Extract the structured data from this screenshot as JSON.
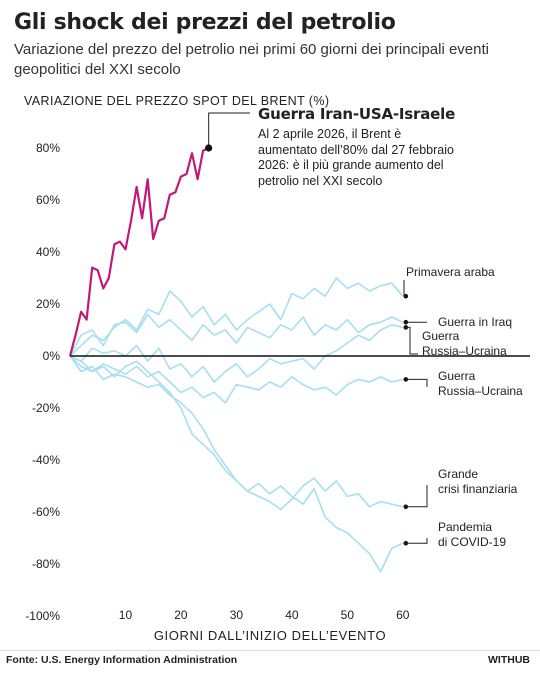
{
  "title": "Gli shock dei prezzi del petrolio",
  "subtitle": "Variazione del prezzo del petrolio nei primi 60 giorni dei principali eventi geopolitici del XXI secolo",
  "source": "Fonte: U.S. Energy Information Administration",
  "brand": "WITHUB",
  "annotation": {
    "title": "Guerra Iran-USA-Israele",
    "text": "Al 2 aprile 2026, il Brent è aumentato dell’80% dal 27 febbraio 2026: è il più grande aumento del petrolio nel XXI secolo"
  },
  "colors": {
    "highlight": "#c2187a",
    "others": "#a6dff0",
    "zero": "#111111",
    "dot": "#111111"
  },
  "chart_data": {
    "type": "line",
    "ylabel": "VARIAZIONE DEL PREZZO SPOT DEL BRENT (%)",
    "xlabel": "GIORNI DALL’INIZIO DELL’EVENTO",
    "xlim": [
      0,
      64
    ],
    "ylim": [
      -100,
      90
    ],
    "xticks": [
      10,
      20,
      30,
      40,
      50,
      60
    ],
    "xtick_labels": [
      "10",
      "20",
      "30",
      "40",
      "50",
      "60"
    ],
    "yticks": [
      80,
      60,
      40,
      20,
      0,
      -20,
      -40,
      -60,
      -80,
      -100
    ],
    "ytick_labels": [
      "80%",
      "60%",
      "40%",
      "20%",
      "0%",
      "-20%",
      "-40%",
      "-60%",
      "-80%",
      "-100%"
    ],
    "grid": false,
    "series": [
      {
        "name": "Guerra Iran-USA-Israele",
        "highlight": true,
        "x": [
          0,
          1,
          2,
          3,
          4,
          5,
          6,
          7,
          8,
          9,
          10,
          11,
          12,
          13,
          14,
          15,
          16,
          17,
          18,
          19,
          20,
          21,
          22,
          23,
          24,
          25
        ],
        "y": [
          0,
          8,
          17,
          14,
          34,
          33,
          26,
          30,
          43,
          44,
          41,
          52,
          65,
          53,
          68,
          45,
          52,
          53,
          62,
          63,
          69,
          70,
          78,
          68,
          79,
          80
        ]
      },
      {
        "name": "Primavera araba",
        "x": [
          0,
          2,
          4,
          6,
          8,
          10,
          12,
          14,
          16,
          18,
          20,
          22,
          24,
          26,
          28,
          30,
          32,
          34,
          36,
          38,
          40,
          42,
          44,
          46,
          48,
          50,
          52,
          54,
          56,
          58,
          60
        ],
        "y": [
          0,
          4,
          8,
          6,
          11,
          14,
          10,
          18,
          16,
          25,
          21,
          15,
          19,
          12,
          16,
          10,
          14,
          17,
          20,
          14,
          24,
          22,
          26,
          23,
          30,
          26,
          28,
          25,
          27,
          28,
          23
        ]
      },
      {
        "name": "Guerra in Iraq",
        "x": [
          0,
          2,
          4,
          6,
          8,
          10,
          12,
          14,
          16,
          18,
          20,
          22,
          24,
          26,
          28,
          30,
          32,
          34,
          36,
          38,
          40,
          42,
          44,
          46,
          48,
          50,
          52,
          54,
          56,
          58,
          60
        ],
        "y": [
          0,
          8,
          10,
          4,
          12,
          13,
          9,
          16,
          11,
          14,
          10,
          6,
          12,
          8,
          10,
          5,
          11,
          9,
          7,
          12,
          10,
          15,
          8,
          12,
          10,
          14,
          9,
          12,
          13,
          15,
          13
        ]
      },
      {
        "name": "Guerra Russia–Ucraina",
        "x": [
          0,
          2,
          4,
          6,
          8,
          10,
          12,
          14,
          16,
          18,
          20,
          22,
          24,
          26,
          28,
          30,
          32,
          34,
          36,
          38,
          40,
          42,
          44,
          46,
          48,
          50,
          52,
          54,
          56,
          58,
          60
        ],
        "y": [
          0,
          -2,
          3,
          1,
          2,
          0,
          4,
          -2,
          3,
          -5,
          -3,
          -8,
          -4,
          -10,
          -6,
          -3,
          -8,
          -5,
          -1,
          -3,
          -2,
          -1,
          -5,
          0,
          2,
          5,
          8,
          6,
          10,
          12,
          11
        ]
      },
      {
        "name": "Guerra Russia–Ucraina",
        "x": [
          0,
          2,
          4,
          6,
          8,
          10,
          12,
          14,
          16,
          18,
          20,
          22,
          24,
          26,
          28,
          30,
          32,
          34,
          36,
          38,
          40,
          42,
          44,
          46,
          48,
          50,
          52,
          54,
          56,
          58,
          60
        ],
        "y": [
          0,
          -4,
          -6,
          -3,
          -5,
          -7,
          -4,
          -8,
          -6,
          -10,
          -14,
          -12,
          -16,
          -14,
          -18,
          -11,
          -12,
          -13,
          -10,
          -12,
          -8,
          -11,
          -13,
          -12,
          -15,
          -11,
          -9,
          -10,
          -8,
          -10,
          -9
        ]
      },
      {
        "name": "Grande crisi finanziaria",
        "x": [
          0,
          2,
          4,
          6,
          8,
          10,
          12,
          14,
          16,
          18,
          20,
          22,
          24,
          26,
          28,
          30,
          32,
          34,
          36,
          38,
          40,
          42,
          44,
          46,
          48,
          50,
          52,
          54,
          56,
          58,
          60
        ],
        "y": [
          0,
          -6,
          -4,
          -9,
          -7,
          -8,
          -10,
          -12,
          -11,
          -15,
          -18,
          -22,
          -28,
          -36,
          -42,
          -48,
          -52,
          -54,
          -56,
          -59,
          -55,
          -50,
          -47,
          -52,
          -48,
          -54,
          -53,
          -58,
          -56,
          -57,
          -58
        ]
      },
      {
        "name": "Pandemia di COVID-19",
        "x": [
          0,
          2,
          4,
          6,
          8,
          10,
          12,
          14,
          16,
          18,
          20,
          22,
          24,
          26,
          28,
          30,
          32,
          34,
          36,
          38,
          40,
          42,
          44,
          46,
          48,
          50,
          52,
          54,
          56,
          58,
          60
        ],
        "y": [
          0,
          -2,
          -6,
          -4,
          -8,
          -4,
          -2,
          -6,
          -10,
          -14,
          -20,
          -30,
          -34,
          -38,
          -44,
          -48,
          -52,
          -49,
          -53,
          -50,
          -54,
          -57,
          -51,
          -62,
          -66,
          -68,
          -72,
          -76,
          -83,
          -74,
          -72
        ]
      }
    ],
    "series_labels": [
      {
        "text": [
          "Primavera araba"
        ],
        "end": 23
      },
      {
        "text": [
          "Guerra in Iraq"
        ],
        "end": 13
      },
      {
        "text": [
          "Guerra",
          "Russia–Ucraina"
        ],
        "end": 11
      },
      {
        "text": [
          "Guerra",
          "Russia–Ucraina"
        ],
        "end": -9
      },
      {
        "text": [
          "Grande",
          "crisi finanziaria"
        ],
        "end": -58
      },
      {
        "text": [
          "Pandemia",
          "di COVID-19"
        ],
        "end": -72
      }
    ]
  }
}
